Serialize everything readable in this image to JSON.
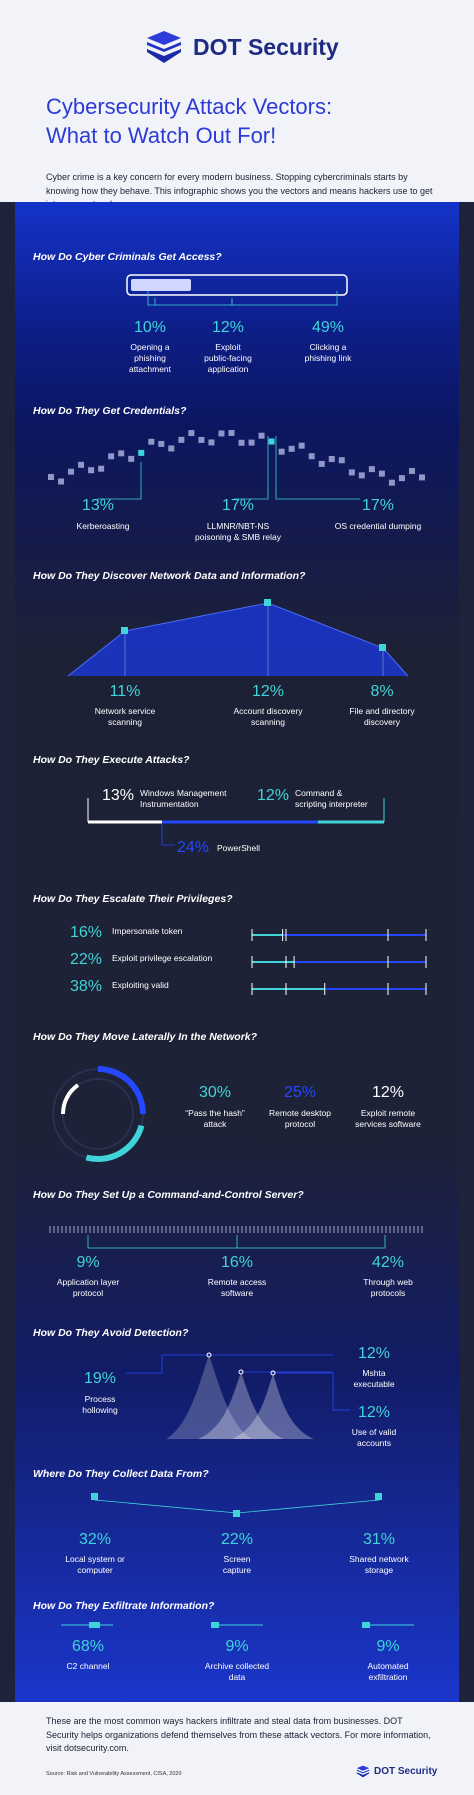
{
  "brand": {
    "name": "DOT Security",
    "color": "#1f2b82",
    "accent": "#2b3bd6",
    "teal": "#3fd4d8"
  },
  "header": {
    "title_line1": "Cybersecurity Attack Vectors:",
    "title_line2": "What to Watch Out For!",
    "intro": "Cyber crime is a key concern for every modern business. Stopping cybercriminals starts by knowing how they behave. This infographic shows you the vectors and means hackers use to get into your network."
  },
  "sections": {
    "access": {
      "title": "How Do Cyber Criminals Get Access?",
      "items": [
        {
          "pct": "10%",
          "label1": "Opening a",
          "label2": "phishing",
          "label3": "attachment"
        },
        {
          "pct": "12%",
          "label1": "Exploit",
          "label2": "public-facing",
          "label3": "application"
        },
        {
          "pct": "49%",
          "label1": "Clicking a",
          "label2": "phishing link",
          "label3": ""
        }
      ]
    },
    "credentials": {
      "title": "How Do They Get Credentials?",
      "items": [
        {
          "pct": "13%",
          "label1": "Kerberoasting",
          "label2": ""
        },
        {
          "pct": "17%",
          "label1": "LLMNR/NBT-NS",
          "label2": "poisoning & SMB relay"
        },
        {
          "pct": "17%",
          "label1": "OS credential dumping",
          "label2": ""
        }
      ]
    },
    "discover": {
      "title": "How Do They Discover Network Data and Information?",
      "items": [
        {
          "pct": "11%",
          "label1": "Network service",
          "label2": "scanning"
        },
        {
          "pct": "12%",
          "label1": "Account discovery",
          "label2": "scanning"
        },
        {
          "pct": "8%",
          "label1": "File and directory",
          "label2": "discovery"
        }
      ]
    },
    "execute": {
      "title": "How Do They Execute Attacks?",
      "items": [
        {
          "pct": "13%",
          "label1": "Windows Management",
          "label2": "Instrumentation"
        },
        {
          "pct": "12%",
          "label1": "Command &",
          "label2": "scripting interpreter"
        },
        {
          "pct": "24%",
          "label1": "PowerShell",
          "label2": ""
        }
      ]
    },
    "escalate": {
      "title": "How Do They Escalate Their Privileges?",
      "items": [
        {
          "pct": "16%",
          "label": "Impersonate token",
          "value": 16
        },
        {
          "pct": "22%",
          "label": "Exploit privilege escalation",
          "value": 22
        },
        {
          "pct": "38%",
          "label": "Exploiting valid",
          "value": 38
        }
      ]
    },
    "lateral": {
      "title": "How Do They Move Laterally In the Network?",
      "items": [
        {
          "pct": "30%",
          "label1": "“Pass the hash”",
          "label2": "attack"
        },
        {
          "pct": "25%",
          "label1": "Remote desktop",
          "label2": "protocol"
        },
        {
          "pct": "12%",
          "label1": "Exploit remote",
          "label2": "services software"
        }
      ]
    },
    "c2": {
      "title": "How Do They Set Up a Command-and-Control Server?",
      "items": [
        {
          "pct": "9%",
          "label1": "Application layer",
          "label2": "protocol"
        },
        {
          "pct": "16%",
          "label1": "Remote access",
          "label2": "software"
        },
        {
          "pct": "42%",
          "label1": "Through web",
          "label2": "protocols"
        }
      ]
    },
    "avoid": {
      "title": "How Do They Avoid Detection?",
      "items": [
        {
          "pct": "19%",
          "label1": "Process",
          "label2": "hollowing"
        },
        {
          "pct": "12%",
          "label1": "Mshta",
          "label2": "executable"
        },
        {
          "pct": "12%",
          "label1": "Use of valid",
          "label2": "accounts"
        }
      ]
    },
    "collect": {
      "title": "Where Do They Collect Data From?",
      "items": [
        {
          "pct": "32%",
          "label1": "Local system or",
          "label2": "computer"
        },
        {
          "pct": "22%",
          "label1": "Screen",
          "label2": "capture"
        },
        {
          "pct": "31%",
          "label1": "Shared network",
          "label2": "storage"
        }
      ]
    },
    "exfil": {
      "title": "How Do They Exfiltrate Information?",
      "items": [
        {
          "pct": "68%",
          "label1": "C2 channel",
          "label2": ""
        },
        {
          "pct": "9%",
          "label1": "Archive collected",
          "label2": "data"
        },
        {
          "pct": "9%",
          "label1": "Automated",
          "label2": "exfiltration"
        }
      ]
    }
  },
  "footer": {
    "text": "These are the most common ways hackers infiltrate and steal data from businesses. DOT Security helps organizations defend themselves from these attack vectors. For more information, visit dotsecurity.com.",
    "source": "Source: Risk and Vulnerability Assessment, CISA, 2020",
    "brand": "DOT Security"
  }
}
